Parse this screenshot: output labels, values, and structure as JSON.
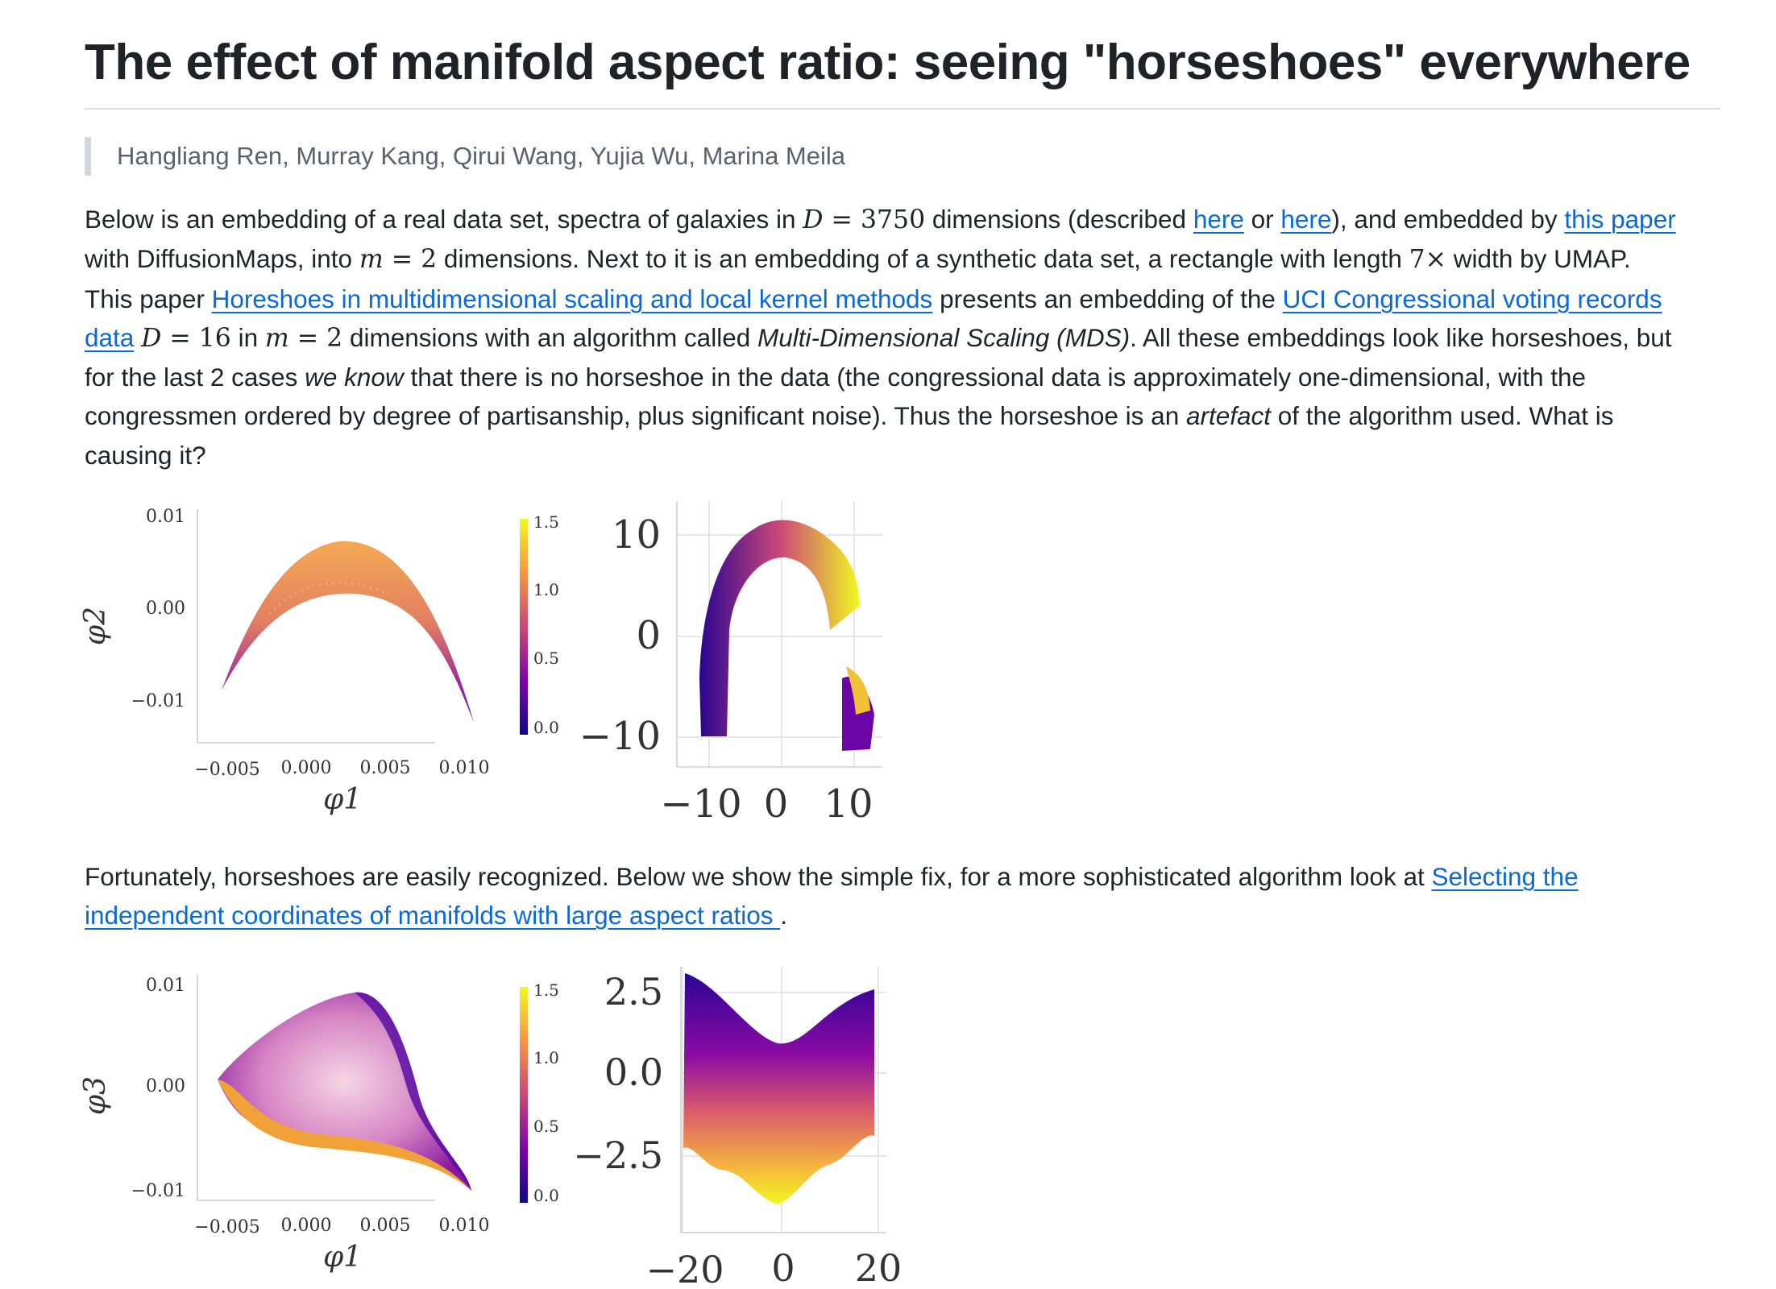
{
  "title": "The effect of manifold aspect ratio: seeing \"horseshoes\" everywhere",
  "authors": "Hangliang Ren, Murray Kang, Qirui Wang, Yujia Wu, Marina Meila",
  "p1": {
    "l1_a": "Below is an embedding of a real data set, spectra of galaxies in ",
    "l1_D": "D",
    "l1_eq": " = 3750",
    "l1_b": " dimensions (described ",
    "link_here1": "here",
    "l1_or": " or ",
    "link_here2": "here",
    "l1_c": "), and embedded by ",
    "link_paper": "this paper",
    "l2_a": "with DiffusionMaps, into ",
    "l2_m": "m",
    "l2_eq": " = 2",
    "l2_b": " dimensions. Next to it is an embedding of a synthetic data set, a rectangle with length ",
    "l2_7": "7×",
    "l2_c": " width by UMAP.",
    "l3_a": "This paper ",
    "link_horseshoes": "Horeshoes in multidimensional scaling and local kernel methods",
    "l3_b": " presents an embedding of the ",
    "link_uci_1": "UCI Congressional voting records",
    "link_uci_2": "data",
    "l4_D": "D",
    "l4_eq1": " = 16",
    "l4_in": " in ",
    "l4_m": "m",
    "l4_eq2": " = 2",
    "l4_b": " dimensions with an algorithm called ",
    "l4_mds": "Multi-Dimensional Scaling (MDS)",
    "l4_c": ". All these embeddings look like horseshoes, but",
    "l5_a": "for the last 2 cases ",
    "l5_weknow": "we know",
    "l5_b": " that there is no horseshoe in the data (the congressional data is approximately one-dimensional, with the",
    "l6_a": "congressmen ordered by degree of partisanship, plus significant noise). Thus the horseshoe is an ",
    "l6_art": "artefact",
    "l6_b": " of the algorithm used. What is",
    "l7": "causing it?"
  },
  "p2": {
    "l1_a": "Fortunately, horseshoes are easily recognized. Below we show the simple fix, for a more sophisticated algorithm look at ",
    "link_a": "Selecting the",
    "link_b": "independent coordinates of manifolds with large aspect ratios ",
    "l2_end": "."
  },
  "figures": {
    "fig1_left": {
      "ylabel": "φ2",
      "xlabel": "φ1",
      "yticks": [
        "0.01",
        "0.00",
        "−0.01"
      ],
      "xticks": [
        "−0.005",
        "0.000",
        "0.005",
        "0.010"
      ],
      "colorbar_ticks": [
        "1.5",
        "1.0",
        "0.5",
        "0.0"
      ]
    },
    "fig1_right": {
      "yticks": [
        "10",
        "0",
        "−10"
      ],
      "xticks": [
        "−10",
        "0",
        "10"
      ]
    },
    "fig2_left": {
      "ylabel": "φ3",
      "xlabel": "φ1",
      "yticks": [
        "0.01",
        "0.00",
        "−0.01"
      ],
      "xticks": [
        "−0.005",
        "0.000",
        "0.005",
        "0.010"
      ],
      "colorbar_ticks": [
        "1.5",
        "1.0",
        "0.5",
        "0.0"
      ]
    },
    "fig2_right": {
      "yticks": [
        "2.5",
        "0.0",
        "−2.5"
      ],
      "xticks": [
        "−20",
        "0",
        "20"
      ]
    }
  },
  "colors": {
    "link": "#0969da",
    "plasma_dark": "#0d0887",
    "plasma_mid": "#cc4778",
    "plasma_light": "#f0f921"
  }
}
